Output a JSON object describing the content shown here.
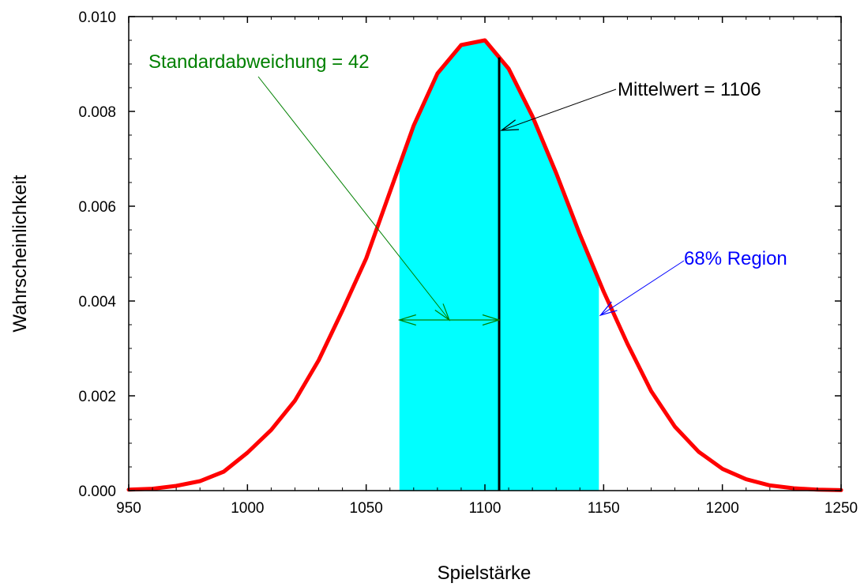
{
  "chart_data": {
    "type": "area",
    "title": "",
    "xlabel": "Spielstärke",
    "ylabel": "Wahrscheinlichkeit",
    "xlim": [
      950,
      1250
    ],
    "ylim": [
      0.0,
      0.01
    ],
    "x_ticks": [
      950,
      1000,
      1050,
      1100,
      1150,
      1200,
      1250
    ],
    "x_tick_labels": [
      "950",
      "1000",
      "1050",
      "1100",
      "1150",
      "1200",
      "1250"
    ],
    "y_ticks": [
      0.0,
      0.002,
      0.004,
      0.006,
      0.008,
      0.01
    ],
    "y_tick_labels": [
      "0.000",
      "0.002",
      "0.004",
      "0.006",
      "0.008",
      "0.010"
    ],
    "grid": false,
    "series": [
      {
        "color": "#ff0000",
        "x": [
          950,
          960,
          970,
          980,
          990,
          1000,
          1010,
          1020,
          1030,
          1040,
          1050,
          1060,
          1070,
          1080,
          1090,
          1100,
          1110,
          1120,
          1130,
          1140,
          1150,
          1160,
          1170,
          1180,
          1190,
          1200,
          1210,
          1220,
          1230,
          1240,
          1250
        ],
        "values": [
          2e-05,
          4e-05,
          0.0001,
          0.0002,
          0.0004,
          0.0008,
          0.00128,
          0.0019,
          0.00275,
          0.0038,
          0.0049,
          0.0063,
          0.0077,
          0.0088,
          0.0094,
          0.0095,
          0.0089,
          0.0079,
          0.0067,
          0.0054,
          0.0042,
          0.0031,
          0.0021,
          0.00135,
          0.00082,
          0.00046,
          0.00024,
          0.00011,
          5e-05,
          2e-05,
          1e-05
        ]
      }
    ],
    "shaded_region": {
      "x_from": 1064,
      "x_to": 1148,
      "color": "#00ffff"
    },
    "mean_line": {
      "x": 1106,
      "color": "#000000"
    },
    "annotations": [
      {
        "text": "Standardabweichung = 42",
        "color": "#008000"
      },
      {
        "text": "Mittelwert = 1106",
        "color": "#000000"
      },
      {
        "text": "68% Region",
        "color": "#0000ff"
      }
    ]
  }
}
